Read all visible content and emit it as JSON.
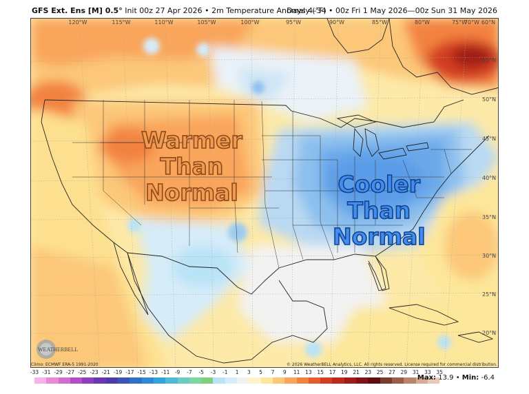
{
  "header": {
    "model": "GFS Ext. Ens [M] 0.5°",
    "init": "Init 00z 27 Apr 2026",
    "sep": "•",
    "field": "2m Temperature Anomaly (°F)",
    "range": "Days 4–34 • 00z Fri 1 May 2026—00z Sun 31 May 2026"
  },
  "annotations": {
    "warm": [
      "Warmer",
      "Than",
      "Normal"
    ],
    "cool": [
      "Cooler",
      "Than",
      "Normal"
    ]
  },
  "grid": {
    "lon_labels": [
      "120°W",
      "115°W",
      "110°W",
      "105°W",
      "100°W",
      "95°W",
      "90°W",
      "85°W",
      "80°W",
      "75°W",
      "70°W",
      "60°N"
    ],
    "lat_labels": [
      "55°N",
      "50°N",
      "45°N",
      "40°N",
      "35°N",
      "30°N",
      "25°N",
      "20°N"
    ]
  },
  "logo": {
    "text": "WEATHERBELL"
  },
  "footer": {
    "climo": "Climo: ECMWF ERA-5 1991-2020",
    "license": "© 2026 WeatherBELL Analytics, LLC. All rights reserved. License required for commercial distribution."
  },
  "scale": {
    "ticks": [
      "-33",
      "-31",
      "-29",
      "-27",
      "-25",
      "-23",
      "-21",
      "-19",
      "-17",
      "-15",
      "-13",
      "-11",
      "-9",
      "-7",
      "-5",
      "-3",
      "-1",
      "1",
      "3",
      "5",
      "7",
      "9",
      "11",
      "13",
      "15",
      "17",
      "19",
      "21",
      "23",
      "25",
      "27",
      "29",
      "31",
      "33",
      "35"
    ],
    "colors": [
      "#f7b3ea",
      "#e98ad9",
      "#d36bd0",
      "#b34fc6",
      "#8e3fbd",
      "#6c38b2",
      "#4f3ba8",
      "#3a55b3",
      "#2f72c4",
      "#2f8ad3",
      "#37a3dc",
      "#4fbad8",
      "#6bcbc1",
      "#7ed6a1",
      "#7fcf7e",
      "#b9e3f6",
      "#d6ecf9",
      "#f2f2f2",
      "#fdf5c8",
      "#fde79a",
      "#fcc779",
      "#f9a55b",
      "#f3823f",
      "#e65d2d",
      "#d33e24",
      "#bb2a1f",
      "#9e1c19",
      "#80131a",
      "#5f0c13",
      "#7a3b2f",
      "#9a5e48",
      "#b88568",
      "#d6ad93",
      "#e8cab9"
    ]
  },
  "stats": {
    "max_label": "Max:",
    "max": "13.9",
    "sep": "•",
    "min_label": "Min:",
    "min": "-6.4"
  }
}
